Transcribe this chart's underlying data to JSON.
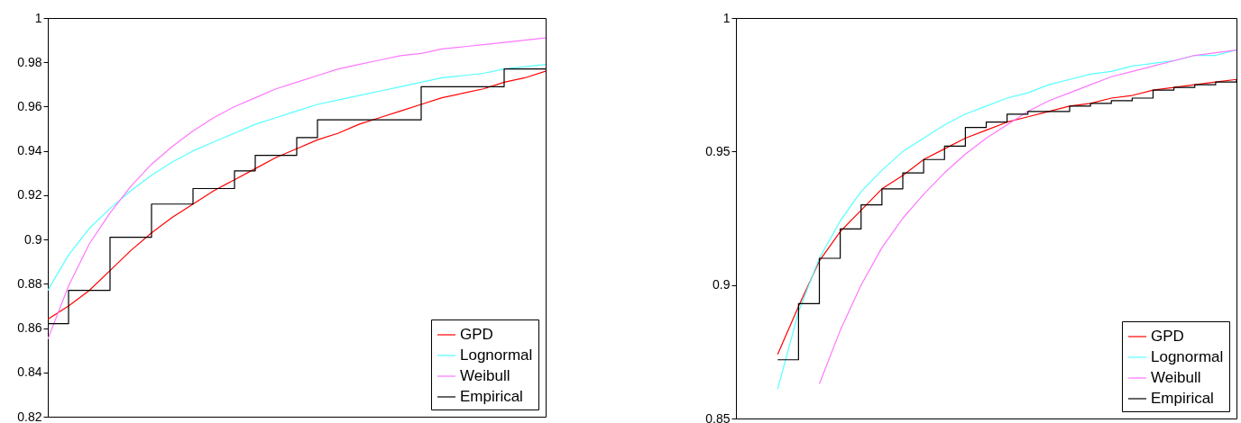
{
  "chart_data": [
    {
      "type": "line",
      "categories": [
        null,
        null,
        null,
        null,
        null,
        null,
        null,
        null,
        null,
        null,
        null,
        null,
        null,
        null,
        null,
        null,
        null,
        null,
        null,
        null,
        null,
        null,
        null,
        null,
        null
      ],
      "ylim": [
        0.82,
        1
      ],
      "yticks": [
        0.82,
        0.84,
        0.86,
        0.88,
        0.9,
        0.92,
        0.94,
        0.96,
        0.98,
        1
      ],
      "grid": false,
      "legend": "bottom right",
      "tick_labels": "y",
      "series": [
        {
          "name": "GPD",
          "type": "line",
          "color": "#ff0000",
          "values": [
            0.864,
            0.87,
            0.877,
            0.886,
            0.895,
            0.903,
            0.91,
            0.916,
            0.922,
            0.927,
            0.932,
            0.937,
            0.941,
            0.945,
            0.948,
            0.952,
            0.955,
            0.958,
            0.961,
            0.964,
            0.966,
            0.968,
            0.971,
            0.973,
            0.976
          ]
        },
        {
          "name": "Lognormal",
          "type": "line",
          "color": "#55ffff",
          "values": [
            0.877,
            0.893,
            0.905,
            0.914,
            0.922,
            0.929,
            0.935,
            0.94,
            0.944,
            0.948,
            0.952,
            0.955,
            0.958,
            0.961,
            0.963,
            0.965,
            0.967,
            0.969,
            0.971,
            0.973,
            0.974,
            0.975,
            0.977,
            0.978,
            0.979
          ]
        },
        {
          "name": "Weibull",
          "type": "line",
          "color": "#ff77ff",
          "values": [
            0.855,
            0.879,
            0.898,
            0.912,
            0.924,
            0.934,
            0.942,
            0.949,
            0.955,
            0.96,
            0.964,
            0.968,
            0.971,
            0.974,
            0.977,
            0.979,
            0.981,
            0.983,
            0.984,
            0.986,
            0.987,
            0.988,
            0.989,
            0.99,
            0.991
          ]
        },
        {
          "name": "Empirical",
          "type": "step",
          "color": "#000000",
          "values": [
            0.862,
            0.877,
            0.877,
            0.901,
            0.901,
            0.916,
            0.916,
            0.923,
            0.923,
            0.931,
            0.938,
            0.938,
            0.946,
            0.954,
            0.954,
            0.954,
            0.954,
            0.954,
            0.969,
            0.969,
            0.969,
            0.969,
            0.977,
            0.977,
            0.977
          ]
        }
      ]
    },
    {
      "type": "line",
      "categories": [
        null,
        null,
        null,
        null,
        null,
        null,
        null,
        null,
        null,
        null,
        null,
        null,
        null,
        null,
        null,
        null,
        null,
        null,
        null,
        null,
        null,
        null,
        null,
        null,
        null
      ],
      "ylim": [
        0.85,
        1
      ],
      "yticks": [
        0.85,
        0.9,
        0.95,
        1
      ],
      "grid": false,
      "legend": "bottom right",
      "tick_labels": "y",
      "series": [
        {
          "name": "GPD",
          "type": "line",
          "color": "#ff0000",
          "values": [
            null,
            null,
            0.874,
            0.892,
            0.909,
            0.92,
            0.928,
            0.936,
            0.941,
            0.947,
            0.951,
            0.955,
            0.958,
            0.961,
            0.963,
            0.965,
            0.967,
            0.968,
            0.97,
            0.971,
            0.973,
            0.974,
            0.975,
            0.976,
            0.977
          ]
        },
        {
          "name": "Lognormal",
          "type": "line",
          "color": "#55ffff",
          "values": [
            null,
            null,
            0.861,
            0.89,
            0.91,
            0.924,
            0.935,
            0.943,
            0.95,
            0.955,
            0.96,
            0.964,
            0.967,
            0.97,
            0.972,
            0.975,
            0.977,
            0.979,
            0.98,
            0.982,
            0.983,
            0.984,
            0.986,
            0.986,
            0.988
          ]
        },
        {
          "name": "Weibull",
          "type": "line",
          "color": "#ff77ff",
          "values": [
            null,
            null,
            null,
            null,
            0.863,
            0.883,
            0.9,
            0.914,
            0.925,
            0.934,
            0.942,
            0.949,
            0.955,
            0.96,
            0.965,
            0.969,
            0.972,
            0.975,
            0.978,
            0.98,
            0.982,
            0.984,
            0.986,
            0.987,
            0.988
          ]
        },
        {
          "name": "Empirical",
          "type": "step",
          "color": "#000000",
          "values": [
            null,
            null,
            0.872,
            0.893,
            0.91,
            0.921,
            0.93,
            0.936,
            0.942,
            0.947,
            0.952,
            0.959,
            0.961,
            0.964,
            0.965,
            0.965,
            0.967,
            0.968,
            0.969,
            0.97,
            0.973,
            0.974,
            0.975,
            0.976,
            0.977
          ]
        }
      ]
    }
  ]
}
